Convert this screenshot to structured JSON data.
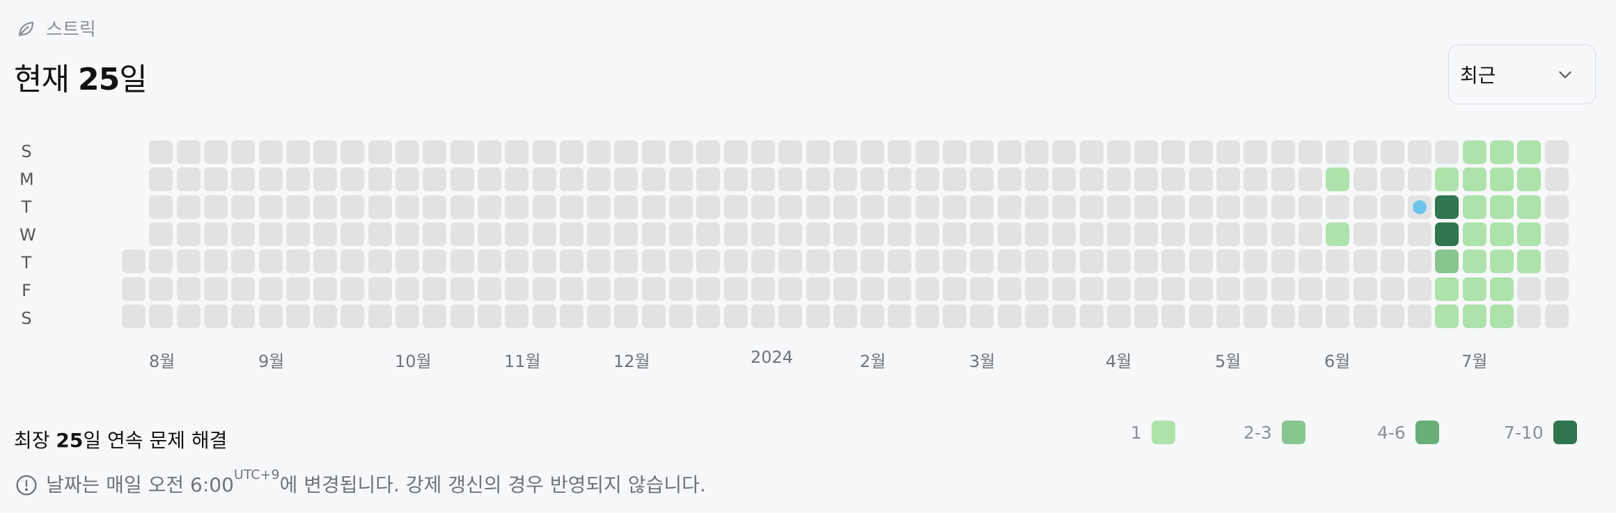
{
  "header": {
    "label": "스트릭",
    "icon": "leaf-icon"
  },
  "title": {
    "prefix": "현재 ",
    "value": "25",
    "suffix": "일"
  },
  "period_select": {
    "selected": "최근"
  },
  "weekday_labels": [
    "S",
    "M",
    "T",
    "W",
    "T",
    "F",
    "S"
  ],
  "month_labels": [
    "8월",
    "9월",
    "10월",
    "11월",
    "12월",
    "2024",
    "2월",
    "3월",
    "4월",
    "5월",
    "6월",
    "7월"
  ],
  "summary": {
    "prefix": "최장 ",
    "value": "25",
    "suffix": "일 연속 문제 해결"
  },
  "legend": [
    {
      "label": "1",
      "color": "#ade2ab"
    },
    {
      "label": "2-3",
      "color": "#89c68f"
    },
    {
      "label": "4-6",
      "color": "#68ae77"
    },
    {
      "label": "7-10",
      "color": "#2f7650"
    }
  ],
  "note": {
    "text": "날짜는 매일 오전 6:00",
    "tz": "UTC+9",
    "tail": "에 변경됩니다. 강제 갱신의 경우 반영되지 않습니다."
  },
  "colors": {
    "empty": "#e1e2e4",
    "today_marker": "#6ec4ec"
  },
  "heatmap": {
    "weeks": 53,
    "first_week_start_day": 4,
    "last_week_end_day": 6,
    "today": {
      "week": 47,
      "day": 2
    },
    "activity": [
      {
        "week": 44,
        "day": 1,
        "level": 1
      },
      {
        "week": 44,
        "day": 3,
        "level": 1
      },
      {
        "week": 48,
        "day": 1,
        "level": 1
      },
      {
        "week": 48,
        "day": 2,
        "level": 4
      },
      {
        "week": 48,
        "day": 3,
        "level": 4
      },
      {
        "week": 48,
        "day": 4,
        "level": 2
      },
      {
        "week": 48,
        "day": 5,
        "level": 1
      },
      {
        "week": 48,
        "day": 6,
        "level": 1
      },
      {
        "week": 49,
        "day": 0,
        "level": 1
      },
      {
        "week": 49,
        "day": 1,
        "level": 1
      },
      {
        "week": 49,
        "day": 2,
        "level": 1
      },
      {
        "week": 49,
        "day": 3,
        "level": 1
      },
      {
        "week": 49,
        "day": 4,
        "level": 1
      },
      {
        "week": 49,
        "day": 5,
        "level": 1
      },
      {
        "week": 49,
        "day": 6,
        "level": 1
      },
      {
        "week": 50,
        "day": 0,
        "level": 1
      },
      {
        "week": 50,
        "day": 1,
        "level": 1
      },
      {
        "week": 50,
        "day": 2,
        "level": 1
      },
      {
        "week": 50,
        "day": 3,
        "level": 1
      },
      {
        "week": 50,
        "day": 4,
        "level": 1
      },
      {
        "week": 50,
        "day": 5,
        "level": 1
      },
      {
        "week": 50,
        "day": 6,
        "level": 1
      },
      {
        "week": 51,
        "day": 0,
        "level": 1
      },
      {
        "week": 51,
        "day": 1,
        "level": 1
      },
      {
        "week": 51,
        "day": 2,
        "level": 1
      },
      {
        "week": 51,
        "day": 3,
        "level": 1
      },
      {
        "week": 51,
        "day": 4,
        "level": 1
      }
    ]
  }
}
